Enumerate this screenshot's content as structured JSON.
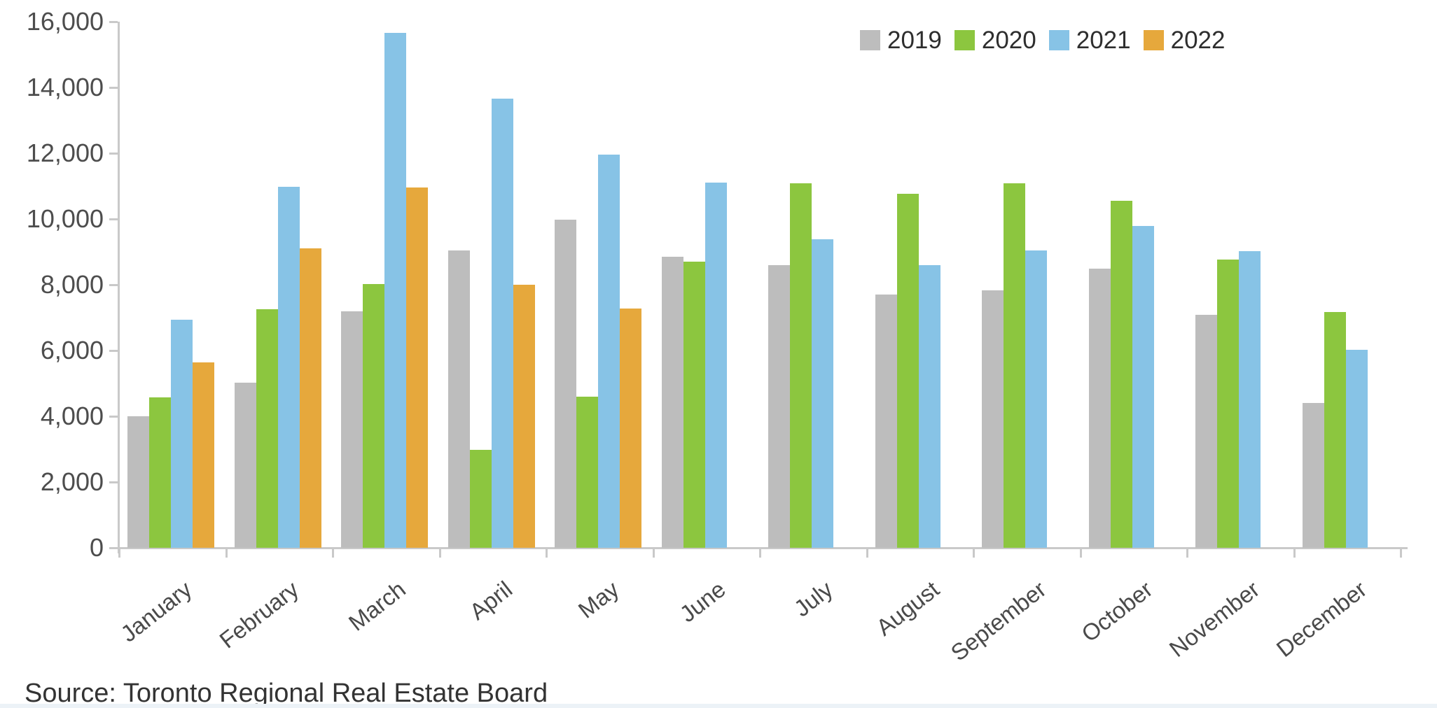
{
  "chart_data": {
    "type": "bar",
    "title": "",
    "xlabel": "",
    "ylabel": "",
    "categories": [
      "January",
      "February",
      "March",
      "April",
      "May",
      "June",
      "July",
      "August",
      "September",
      "October",
      "November",
      "December"
    ],
    "series": [
      {
        "name": "2019",
        "color": "#bdbdbd",
        "values": [
          4009,
          5025,
          7187,
          9042,
          9989,
          8860,
          8595,
          7711,
          7825,
          8491,
          7090,
          4399
        ]
      },
      {
        "name": "2020",
        "color": "#8cc63f",
        "values": [
          4581,
          7256,
          8012,
          2975,
          4606,
          8701,
          11081,
          10775,
          11083,
          10563,
          8766,
          7180
        ]
      },
      {
        "name": "2021",
        "color": "#87c3e6",
        "values": [
          6928,
          10970,
          15652,
          13663,
          11951,
          11106,
          9390,
          8596,
          9046,
          9783,
          9017,
          6031
        ]
      },
      {
        "name": "2022",
        "color": "#e6a83c",
        "values": [
          5636,
          9097,
          10955,
          8008,
          7283,
          null,
          null,
          null,
          null,
          null,
          null,
          null
        ]
      }
    ],
    "ylim": [
      0,
      16000
    ],
    "y_tick_step": 2000,
    "y_tick_labels": [
      "0",
      "2,000",
      "4,000",
      "6,000",
      "8,000",
      "10,000",
      "12,000",
      "14,000",
      "16,000"
    ],
    "grid": false,
    "legend_position": "top-right",
    "axis_color": "#c9c9c9"
  },
  "source": {
    "label": "Source: Toronto Regional Real Estate Board"
  }
}
